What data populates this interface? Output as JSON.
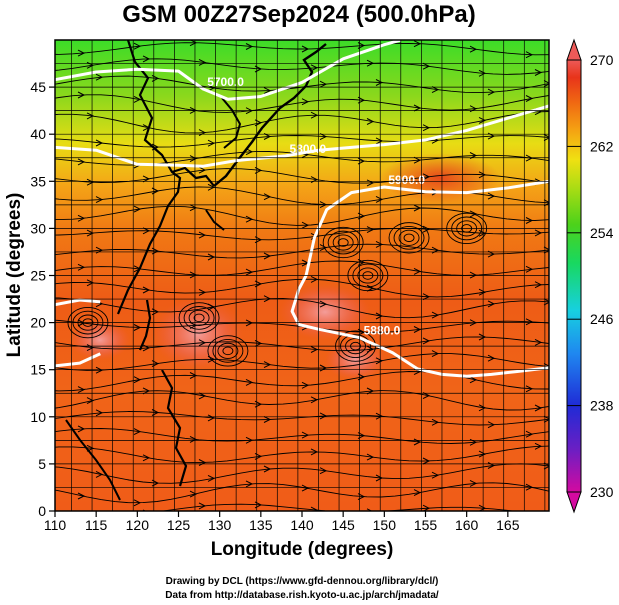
{
  "chart_data": {
    "type": "heatmap",
    "title": "GSM 00Z27Sep2024 (500.0hPa)",
    "xlabel": "Longitude (degrees)",
    "ylabel": "Latitude  (degrees)",
    "xlim": [
      110,
      170
    ],
    "ylim": [
      0,
      50
    ],
    "x_ticks": [
      "110",
      "115",
      "120",
      "125",
      "130",
      "135",
      "140",
      "145",
      "150",
      "155",
      "160",
      "165"
    ],
    "y_ticks": [
      "0",
      "5",
      "10",
      "15",
      "20",
      "25",
      "30",
      "35",
      "40",
      "45"
    ],
    "colorbar": {
      "range": [
        230,
        270
      ],
      "tick_labels": [
        "270",
        "262",
        "254",
        "246",
        "238",
        "230"
      ],
      "colors": [
        "#d40aa0",
        "#6a1fc4",
        "#1f2bd6",
        "#1f87f0",
        "#17d0e0",
        "#18d860",
        "#4dd21a",
        "#a6dc14",
        "#f0e012",
        "#f5a012",
        "#f06a12",
        "#e8341a",
        "#ee5a58"
      ]
    },
    "contours": [
      {
        "label": "5700.0",
        "lon": [
          110,
          115,
          120,
          125,
          128,
          131,
          135,
          140,
          145,
          150,
          152
        ],
        "lat": [
          45.8,
          46.6,
          46.9,
          46.7,
          44.8,
          43.7,
          44.0,
          45.5,
          48.0,
          49.5,
          50
        ]
      },
      {
        "label": "5800.0",
        "lon": [
          110,
          115,
          120,
          125,
          128,
          132,
          138,
          142,
          146,
          150,
          155,
          160,
          165,
          170
        ],
        "lat": [
          38.6,
          38.3,
          36.8,
          36.7,
          36.6,
          37.2,
          37.7,
          38.3,
          38.6,
          38.9,
          39.4,
          40.4,
          41.7,
          43.0
        ]
      },
      {
        "label": "5900.0",
        "lon": [
          140.5,
          141.5,
          143,
          146,
          150,
          155,
          160,
          165,
          170
        ],
        "lat": [
          25.0,
          29.0,
          32.0,
          33.8,
          34.4,
          33.9,
          33.8,
          34.3,
          35.0
        ]
      },
      {
        "label": "5880.0",
        "lon": [
          140.5,
          139.6,
          138.8,
          139.6,
          142,
          147,
          151,
          154,
          157,
          160,
          163,
          166,
          170
        ],
        "lat": [
          25.0,
          23.5,
          21.2,
          19.8,
          19.3,
          18.4,
          16.8,
          15.1,
          14.5,
          14.3,
          14.5,
          14.8,
          15.2
        ]
      },
      {
        "label": "",
        "lon": [
          110,
          113,
          115.5
        ],
        "lat": [
          21.9,
          22.4,
          22.2
        ]
      },
      {
        "label": "",
        "lon": [
          110,
          113,
          115.5
        ],
        "lat": [
          15.4,
          15.7,
          16.7
        ]
      }
    ],
    "contour_labels": [
      "5700.0",
      "5800.0",
      "5900.0",
      "5880.0"
    ]
  },
  "credits": {
    "line1": "Drawing by DCL (https://www.gfd-dennou.org/library/dcl/)",
    "line2": "Data from http://database.rish.kyoto-u.ac.jp/arch/jmadata/"
  }
}
